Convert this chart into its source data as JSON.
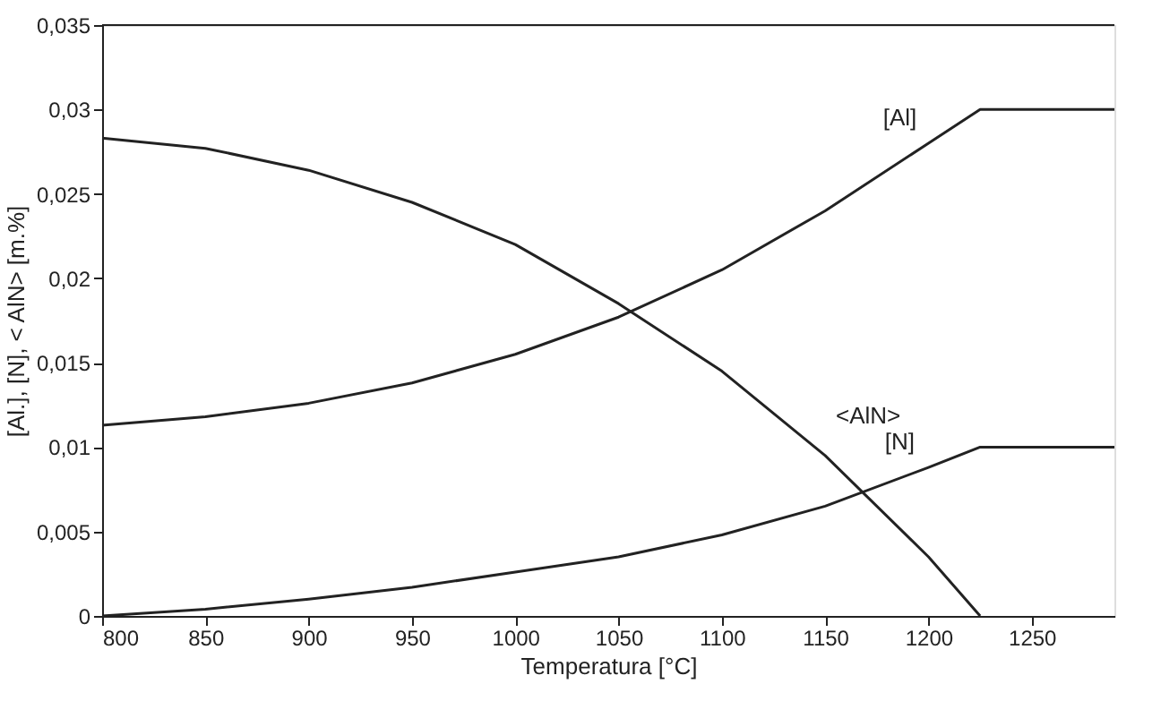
{
  "chart_data": {
    "type": "line",
    "xlabel": "Temperatura  [°C]",
    "ylabel": "[Al.], [N], < AlN> [m.%]",
    "xlim": [
      800,
      1290
    ],
    "xticks": [
      800,
      850,
      900,
      950,
      1000,
      1050,
      1100,
      1150,
      1200,
      1250
    ],
    "ylim": [
      0,
      0.035
    ],
    "yticks": [
      {
        "value": 0,
        "label": "0"
      },
      {
        "value": 0.005,
        "label": "0,005"
      },
      {
        "value": 0.01,
        "label": "0,01"
      },
      {
        "value": 0.015,
        "label": "0,015"
      },
      {
        "value": 0.02,
        "label": "0,02"
      },
      {
        "value": 0.025,
        "label": "0,025"
      },
      {
        "value": 0.03,
        "label": "0,03"
      },
      {
        "value": 0.035,
        "label": "0,035"
      }
    ],
    "grid": false,
    "legend": false,
    "marker": "none",
    "line_style": "solid",
    "series": [
      {
        "name": "<AlN>",
        "color": "#222222",
        "x": [
          800,
          850,
          900,
          950,
          1000,
          1050,
          1100,
          1150,
          1200,
          1225
        ],
        "values": [
          0.0283,
          0.0277,
          0.0264,
          0.0245,
          0.022,
          0.0185,
          0.0145,
          0.0095,
          0.0035,
          0
        ]
      },
      {
        "name": "[Al]",
        "color": "#222222",
        "x": [
          800,
          850,
          900,
          950,
          1000,
          1050,
          1100,
          1150,
          1200,
          1225,
          1290
        ],
        "values": [
          0.0113,
          0.0118,
          0.0126,
          0.0138,
          0.0155,
          0.0177,
          0.0205,
          0.024,
          0.028,
          0.03,
          0.03
        ]
      },
      {
        "name": "[N]",
        "color": "#222222",
        "x": [
          800,
          850,
          900,
          950,
          1000,
          1050,
          1100,
          1150,
          1200,
          1225,
          1290
        ],
        "values": [
          0,
          0.0004,
          0.001,
          0.0017,
          0.0026,
          0.0035,
          0.0048,
          0.0065,
          0.0088,
          0.01,
          0.01
        ]
      }
    ]
  }
}
